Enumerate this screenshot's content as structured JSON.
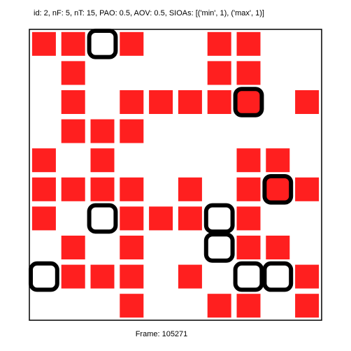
{
  "header_text": "id: 2, nF: 5, nT: 15, PAO: 0.5, AOV: 0.5, SIOAs: [('min', 1), ('max', 1)]",
  "footer_text": "Frame: 105271",
  "colors": {
    "tile": "#ff1f1f",
    "outline": "#000000",
    "background": "#ffffff",
    "border": "#000000"
  },
  "grid": {
    "cols": 10,
    "rows": 10,
    "tiles": [
      [
        0,
        0
      ],
      [
        1,
        0
      ],
      [
        3,
        0
      ],
      [
        6,
        0
      ],
      [
        7,
        0
      ],
      [
        1,
        1
      ],
      [
        6,
        1
      ],
      [
        7,
        1
      ],
      [
        1,
        2
      ],
      [
        3,
        2
      ],
      [
        4,
        2
      ],
      [
        5,
        2
      ],
      [
        6,
        2
      ],
      [
        7,
        2
      ],
      [
        9,
        2
      ],
      [
        1,
        3
      ],
      [
        2,
        3
      ],
      [
        3,
        3
      ],
      [
        0,
        4
      ],
      [
        2,
        4
      ],
      [
        7,
        4
      ],
      [
        8,
        4
      ],
      [
        0,
        5
      ],
      [
        1,
        5
      ],
      [
        2,
        5
      ],
      [
        3,
        5
      ],
      [
        5,
        5
      ],
      [
        7,
        5
      ],
      [
        8,
        5
      ],
      [
        9,
        5
      ],
      [
        0,
        6
      ],
      [
        3,
        6
      ],
      [
        4,
        6
      ],
      [
        5,
        6
      ],
      [
        7,
        6
      ],
      [
        1,
        7
      ],
      [
        3,
        7
      ],
      [
        7,
        7
      ],
      [
        8,
        7
      ],
      [
        1,
        8
      ],
      [
        2,
        8
      ],
      [
        3,
        8
      ],
      [
        5,
        8
      ],
      [
        9,
        8
      ],
      [
        3,
        9
      ],
      [
        6,
        9
      ],
      [
        7,
        9
      ],
      [
        9,
        9
      ]
    ],
    "outlines": [
      {
        "name": "outline-a",
        "cells": [
          [
            2,
            0
          ]
        ]
      },
      {
        "name": "outline-b",
        "cells": [
          [
            7,
            2
          ]
        ]
      },
      {
        "name": "outline-c",
        "cells": [
          [
            8,
            5
          ]
        ]
      },
      {
        "name": "outline-d",
        "cells": [
          [
            2,
            6
          ]
        ]
      },
      {
        "name": "outline-e",
        "cells": [
          [
            6,
            6
          ],
          [
            6,
            7
          ],
          [
            7,
            8
          ],
          [
            8,
            8
          ]
        ]
      },
      {
        "name": "outline-f",
        "cells": [
          [
            0,
            8
          ]
        ]
      }
    ]
  }
}
